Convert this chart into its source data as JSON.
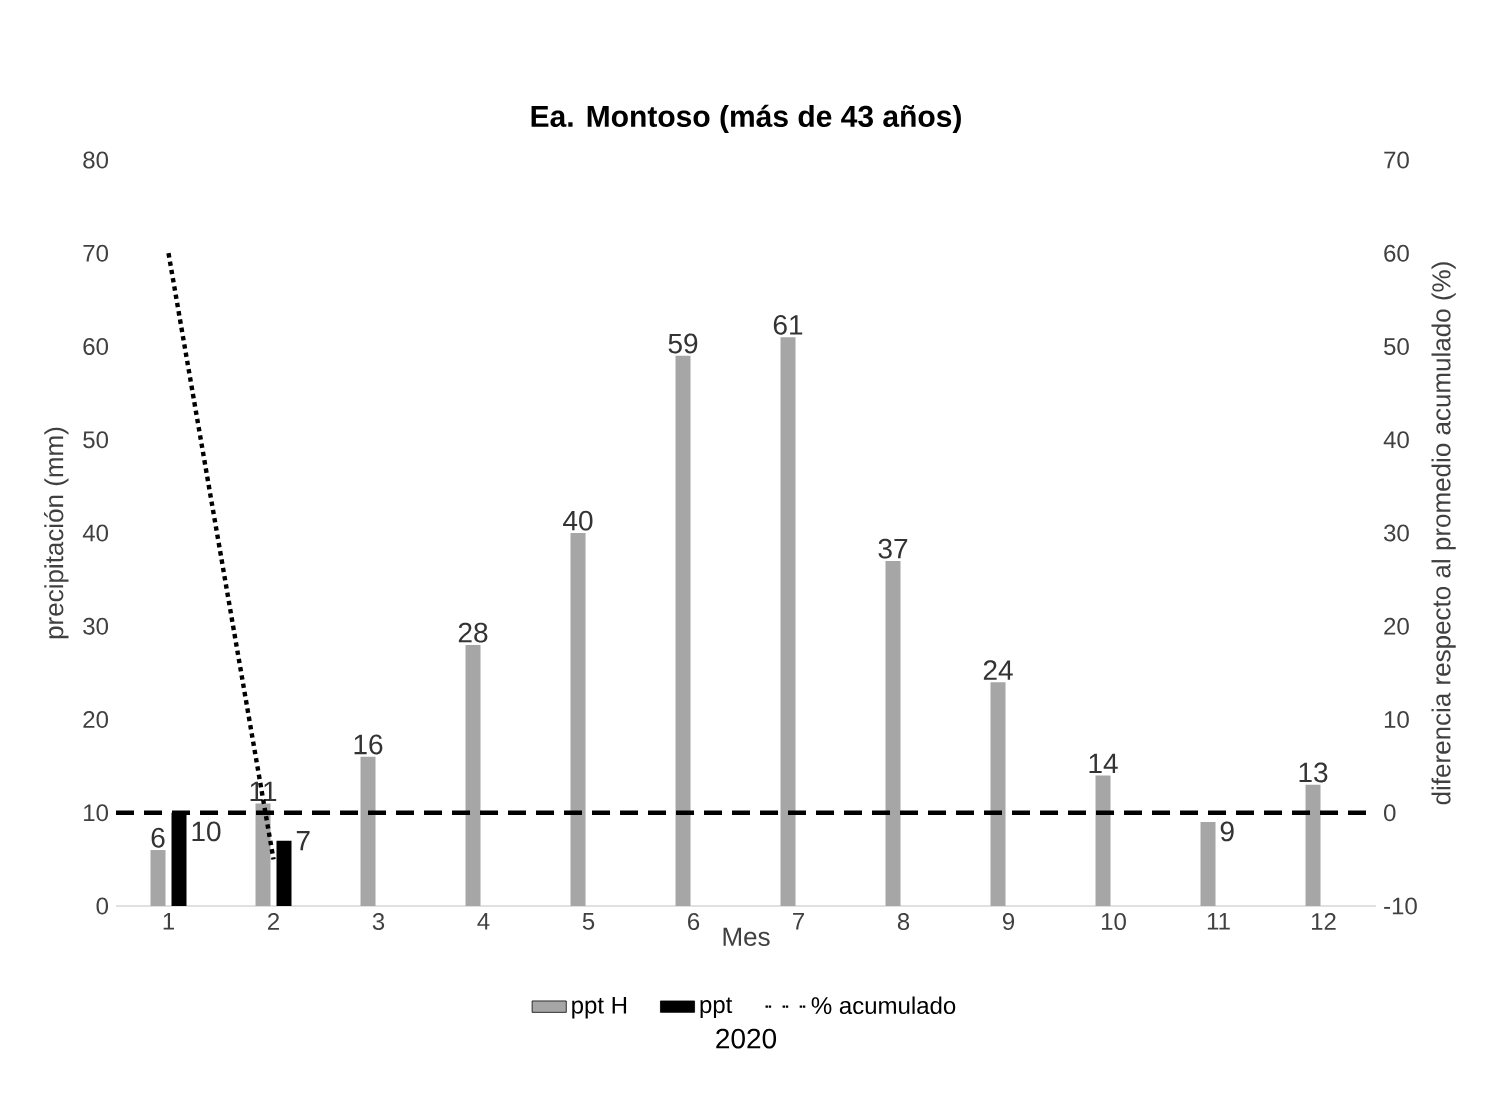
{
  "chart_data": {
    "type": "bar",
    "title": "Ea. Montoso (más de 43 años)",
    "xlabel": "Mes",
    "ylabel": "precipitación (mm)",
    "y2label": "diferencia  respecto al promedio acumulado  (%)",
    "categories": [
      "1",
      "2",
      "3",
      "4",
      "5",
      "6",
      "7",
      "8",
      "9",
      "10",
      "11",
      "12"
    ],
    "series": [
      {
        "name": "ppt H",
        "color": "#a6a6a6",
        "values": [
          6,
          11,
          16,
          28,
          40,
          59,
          61,
          37,
          24,
          14,
          9,
          13
        ],
        "value_labels": [
          "6",
          "11",
          "16",
          "28",
          "40",
          "59",
          "61",
          "37",
          "24",
          "14",
          "9",
          "13"
        ]
      },
      {
        "name": "ppt",
        "color": "#000000",
        "values": [
          10,
          7,
          null,
          null,
          null,
          null,
          null,
          null,
          null,
          null,
          null,
          null
        ],
        "value_labels": [
          "10",
          "7",
          null,
          null,
          null,
          null,
          null,
          null,
          null,
          null,
          null,
          null
        ]
      },
      {
        "name": "% acumulado",
        "type": "line",
        "axis": "y2",
        "color": "#000000",
        "line_style": "dotted",
        "values": [
          60,
          -5,
          null,
          null,
          null,
          null,
          null,
          null,
          null,
          null,
          null,
          null
        ]
      }
    ],
    "ylim": [
      0,
      80
    ],
    "yticks": [
      0,
      10,
      20,
      30,
      40,
      50,
      60,
      70,
      80
    ],
    "y2lim": [
      -10,
      70
    ],
    "y2ticks": [
      -10,
      0,
      10,
      20,
      30,
      40,
      50,
      60,
      70
    ],
    "ref_lines": [
      {
        "axis": "y2",
        "value": 0,
        "color": "#000000",
        "line_style": "dashed"
      }
    ],
    "legend": "bottom",
    "grid": false,
    "annotations": [
      "2020"
    ]
  }
}
